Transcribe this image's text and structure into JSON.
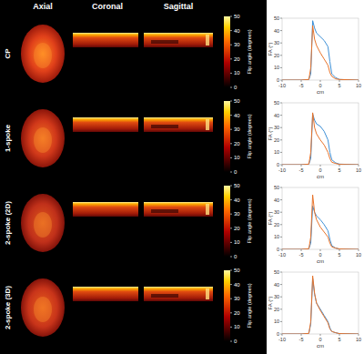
{
  "figure": {
    "column_headers": [
      "Axial",
      "Coronal",
      "Sagittal"
    ],
    "rows": [
      {
        "label": "CP"
      },
      {
        "label": "1-spoke"
      },
      {
        "label": "2-spoke (2D)"
      },
      {
        "label": "2-spoke (3D)"
      }
    ],
    "colorbar": {
      "label": "Flip angle (degrees)",
      "range": [
        0,
        50
      ],
      "ticks": [
        0,
        10,
        20,
        30,
        40,
        50
      ]
    }
  },
  "chart_data": [
    {
      "type": "line",
      "xlabel": "cm",
      "ylabel": "FA (°)",
      "x": [
        -10,
        -5,
        -3,
        -2.5,
        -2,
        -1.5,
        -1,
        0,
        1,
        2,
        2.5,
        3,
        4,
        5,
        10
      ],
      "series": [
        {
          "color": "#3d8fd6",
          "values": [
            0,
            0,
            0.5,
            5,
            48,
            42,
            38,
            35,
            32,
            27,
            15,
            5,
            2,
            0.5,
            0
          ]
        },
        {
          "color": "#e8732a",
          "values": [
            0,
            0,
            0.5,
            10,
            44,
            33,
            28,
            22,
            17,
            12,
            6,
            3,
            1,
            0.5,
            0
          ]
        }
      ],
      "xlim": [
        -10,
        10
      ],
      "ylim": [
        0,
        50
      ],
      "xticks": [
        -10,
        -5,
        0,
        5,
        10
      ],
      "yticks": [
        0,
        10,
        20,
        30,
        40,
        50
      ]
    },
    {
      "type": "line",
      "xlabel": "cm",
      "ylabel": "FA (°)",
      "x": [
        -10,
        -5,
        -3,
        -2.5,
        -2,
        -1.5,
        -1,
        0,
        1,
        2,
        2.5,
        3,
        4,
        5,
        10
      ],
      "series": [
        {
          "color": "#3d8fd6",
          "values": [
            0,
            0,
            0.5,
            5,
            41,
            36,
            33,
            31,
            27,
            20,
            10,
            4,
            1.5,
            0.5,
            0
          ]
        },
        {
          "color": "#e8732a",
          "values": [
            0,
            0,
            0.5,
            10,
            42,
            30,
            25,
            20,
            16,
            10,
            5,
            2,
            1,
            0.3,
            0
          ]
        }
      ],
      "xlim": [
        -10,
        10
      ],
      "ylim": [
        0,
        50
      ],
      "xticks": [
        -10,
        -5,
        0,
        5,
        10
      ],
      "yticks": [
        0,
        10,
        20,
        30,
        40,
        50
      ]
    },
    {
      "type": "line",
      "xlabel": "cm",
      "ylabel": "FA (°)",
      "x": [
        -10,
        -5,
        -3,
        -2.5,
        -2,
        -1.5,
        -1,
        0,
        1,
        2,
        2.5,
        3,
        4,
        5,
        10
      ],
      "series": [
        {
          "color": "#3d8fd6",
          "values": [
            0,
            0,
            0.5,
            5,
            35,
            30,
            27,
            24,
            20,
            15,
            8,
            3,
            1,
            0.3,
            0
          ]
        },
        {
          "color": "#e8732a",
          "values": [
            0,
            0,
            0.5,
            10,
            44,
            30,
            24,
            18,
            14,
            10,
            5,
            2,
            1,
            0.3,
            0
          ]
        }
      ],
      "xlim": [
        -10,
        10
      ],
      "ylim": [
        0,
        50
      ],
      "xticks": [
        -10,
        -5,
        0,
        5,
        10
      ],
      "yticks": [
        0,
        10,
        20,
        30,
        40,
        50
      ]
    },
    {
      "type": "line",
      "xlabel": "cm",
      "ylabel": "FA (°)",
      "x": [
        -10,
        -5,
        -3,
        -2.5,
        -2,
        -1.5,
        -1,
        0,
        1,
        2,
        2.5,
        3,
        4,
        5,
        10
      ],
      "series": [
        {
          "color": "#3d8fd6",
          "values": [
            0,
            0,
            0.5,
            8,
            45,
            32,
            25,
            20,
            15,
            10,
            5,
            2,
            1,
            0.3,
            0
          ]
        },
        {
          "color": "#e8732a",
          "values": [
            0,
            0,
            0.5,
            10,
            47,
            33,
            25,
            19,
            14,
            9,
            4,
            2,
            1,
            0.3,
            0
          ]
        }
      ],
      "xlim": [
        -10,
        10
      ],
      "ylim": [
        0,
        50
      ],
      "xticks": [
        -10,
        -5,
        0,
        5,
        10
      ],
      "yticks": [
        0,
        10,
        20,
        30,
        40,
        50
      ]
    }
  ]
}
